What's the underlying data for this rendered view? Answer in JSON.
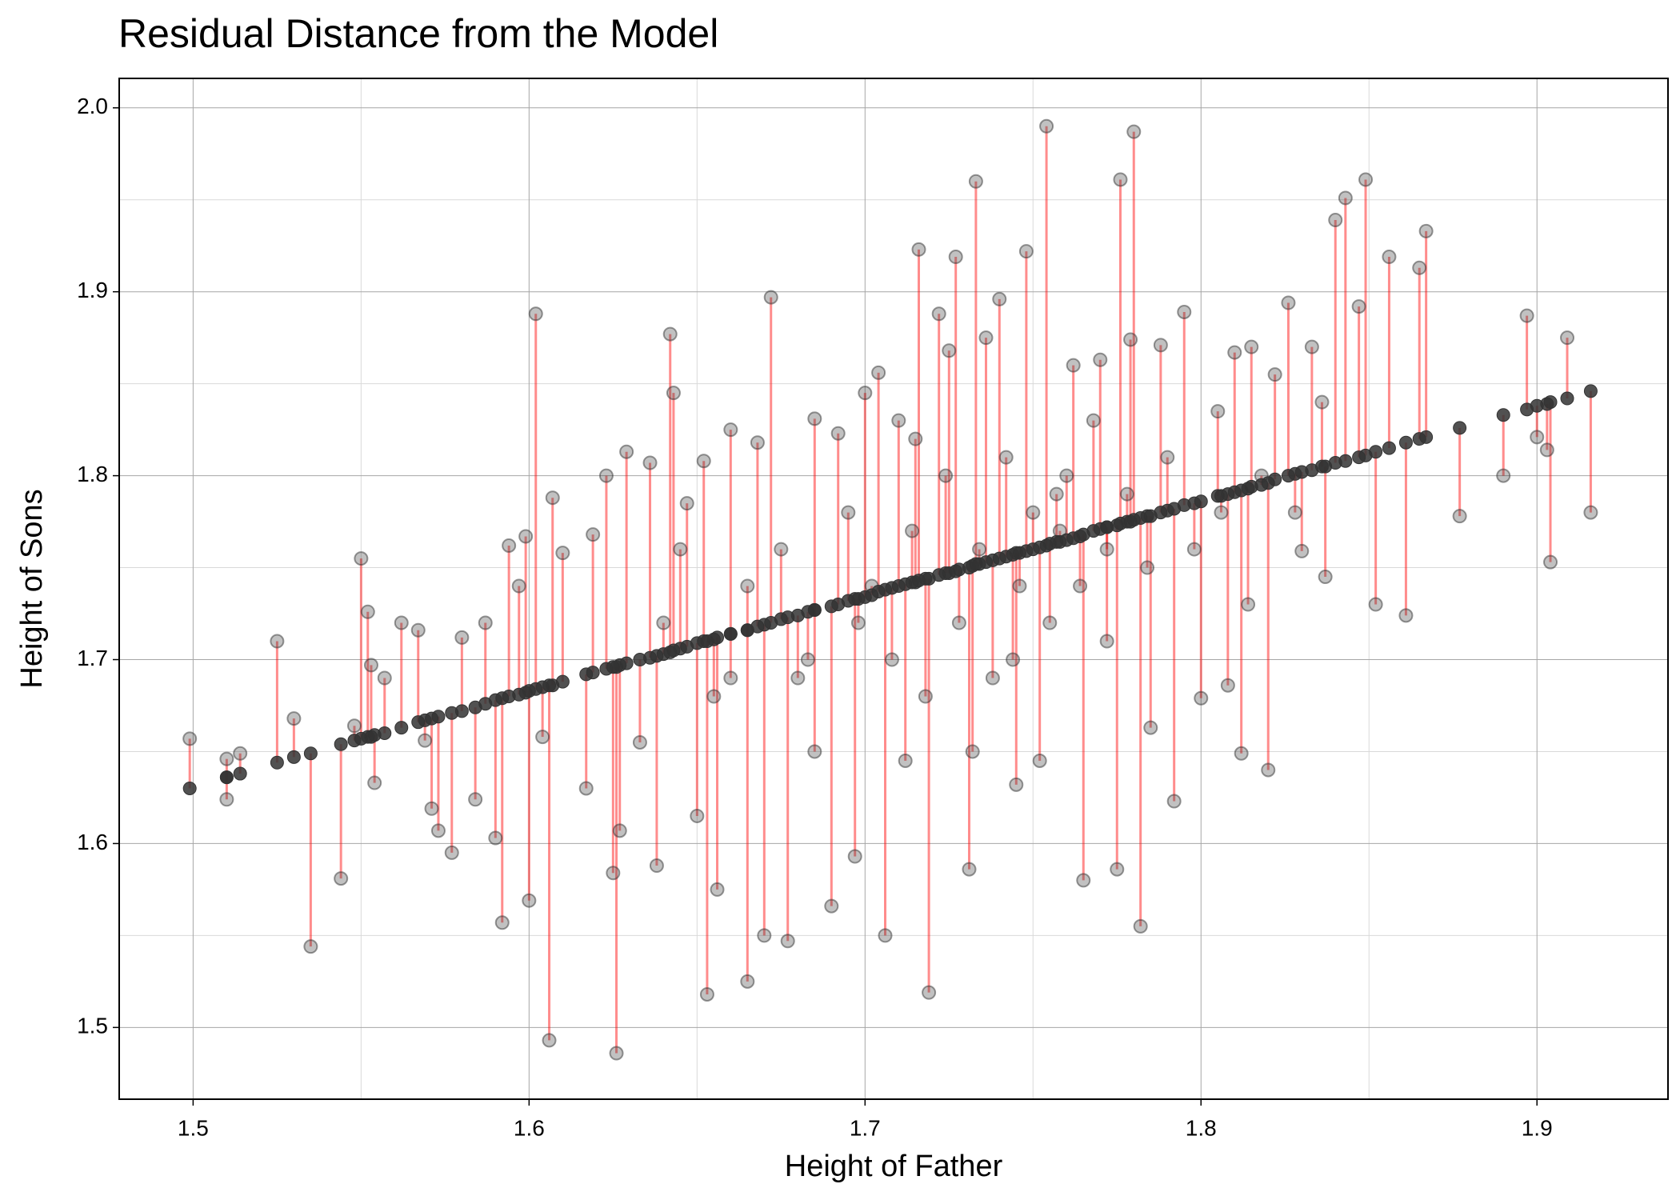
{
  "chart_data": {
    "type": "scatter",
    "title": "Residual Distance from the Model",
    "x_label": "Height of Father",
    "y_label": "Height of Sons",
    "xlim": [
      1.478,
      1.939
    ],
    "ylim": [
      1.461,
      2.016
    ],
    "xticks": [
      1.5,
      1.6,
      1.7,
      1.8,
      1.9
    ],
    "yticks": [
      1.5,
      1.6,
      1.7,
      1.8,
      1.9,
      {
        "value": 2,
        "label": "2.0"
      }
    ],
    "xminor": [
      1.55,
      1.65,
      1.75,
      1.85
    ],
    "yminor": [
      1.55,
      1.65,
      1.75,
      1.85,
      1.95
    ],
    "grid": true,
    "point_color": "#333333",
    "residual_color": "#ff0000",
    "x": [
      1.499,
      1.51,
      1.51,
      1.514,
      1.525,
      1.53,
      1.535,
      1.544,
      1.548,
      1.55,
      1.552,
      1.553,
      1.554,
      1.557,
      1.562,
      1.567,
      1.569,
      1.571,
      1.573,
      1.577,
      1.58,
      1.584,
      1.587,
      1.59,
      1.592,
      1.594,
      1.597,
      1.599,
      1.6,
      1.602,
      1.604,
      1.606,
      1.607,
      1.61,
      1.617,
      1.619,
      1.623,
      1.625,
      1.626,
      1.627,
      1.629,
      1.633,
      1.636,
      1.638,
      1.642,
      1.643,
      1.647,
      1.65,
      1.652,
      1.653,
      1.656,
      1.66,
      1.665,
      1.668,
      1.67,
      1.672,
      1.677,
      1.68,
      1.685,
      1.69,
      1.692,
      1.697,
      1.7,
      1.704,
      1.706,
      1.71,
      1.712,
      1.716,
      1.719,
      1.722,
      1.725,
      1.727,
      1.731,
      1.733,
      1.736,
      1.74,
      1.745,
      1.748,
      1.752,
      1.754,
      1.757,
      1.762,
      1.765,
      1.77,
      1.775,
      1.776,
      1.779,
      1.78,
      1.782,
      1.785,
      1.788,
      1.792,
      1.795,
      1.8,
      1.805,
      1.808,
      1.81,
      1.812,
      1.815,
      1.82,
      1.822,
      1.826,
      1.83,
      1.833,
      1.837,
      1.84,
      1.843,
      1.847,
      1.849,
      1.852,
      1.856,
      1.861,
      1.865,
      1.867,
      1.877,
      1.89,
      1.897,
      1.9,
      1.903,
      1.904,
      1.909,
      1.916,
      1.64,
      1.66,
      1.675,
      1.683,
      1.695,
      1.702,
      1.708,
      1.714,
      1.718,
      1.724,
      1.728,
      1.734,
      1.738,
      1.742,
      1.746,
      1.75,
      1.755,
      1.76,
      1.764,
      1.768,
      1.772,
      1.778,
      1.784,
      1.79,
      1.798,
      1.806,
      1.814,
      1.818,
      1.828,
      1.836,
      1.645,
      1.655,
      1.665,
      1.685,
      1.698,
      1.715,
      1.732,
      1.744,
      1.758,
      1.772
    ],
    "y": [
      1.657,
      1.646,
      1.624,
      1.649,
      1.71,
      1.668,
      1.544,
      1.581,
      1.664,
      1.755,
      1.726,
      1.697,
      1.633,
      1.69,
      1.72,
      1.716,
      1.656,
      1.619,
      1.607,
      1.595,
      1.712,
      1.624,
      1.72,
      1.603,
      1.557,
      1.762,
      1.74,
      1.767,
      1.569,
      1.888,
      1.658,
      1.493,
      1.788,
      1.758,
      1.63,
      1.768,
      1.8,
      1.584,
      1.486,
      1.607,
      1.813,
      1.655,
      1.807,
      1.588,
      1.877,
      1.845,
      1.785,
      1.615,
      1.808,
      1.518,
      1.575,
      1.825,
      1.525,
      1.818,
      1.55,
      1.897,
      1.547,
      1.69,
      1.831,
      1.566,
      1.823,
      1.593,
      1.845,
      1.856,
      1.55,
      1.83,
      1.645,
      1.923,
      1.519,
      1.888,
      1.868,
      1.919,
      1.586,
      1.96,
      1.875,
      1.896,
      1.632,
      1.922,
      1.645,
      1.99,
      1.79,
      1.86,
      1.58,
      1.863,
      1.586,
      1.961,
      1.874,
      1.987,
      1.555,
      1.663,
      1.871,
      1.623,
      1.889,
      1.679,
      1.835,
      1.686,
      1.867,
      1.649,
      1.87,
      1.64,
      1.855,
      1.894,
      1.759,
      1.87,
      1.745,
      1.939,
      1.951,
      1.892,
      1.961,
      1.73,
      1.919,
      1.724,
      1.913,
      1.933,
      1.778,
      1.8,
      1.887,
      1.821,
      1.814,
      1.753,
      1.875,
      1.78,
      1.72,
      1.69,
      1.76,
      1.7,
      1.78,
      1.74,
      1.7,
      1.77,
      1.68,
      1.8,
      1.72,
      1.76,
      1.69,
      1.81,
      1.74,
      1.78,
      1.72,
      1.8,
      1.74,
      1.83,
      1.71,
      1.79,
      1.75,
      1.81,
      1.76,
      1.78,
      1.73,
      1.8,
      1.78,
      1.84,
      1.76,
      1.68,
      1.74,
      1.65,
      1.72,
      1.82,
      1.65,
      1.7,
      1.77,
      1.76
    ],
    "fitted": [
      1.63,
      1.636,
      1.636,
      1.638,
      1.644,
      1.647,
      1.649,
      1.654,
      1.656,
      1.657,
      1.658,
      1.658,
      1.659,
      1.66,
      1.663,
      1.666,
      1.667,
      1.668,
      1.669,
      1.671,
      1.672,
      1.674,
      1.676,
      1.678,
      1.679,
      1.68,
      1.681,
      1.682,
      1.683,
      1.684,
      1.685,
      1.686,
      1.686,
      1.688,
      1.692,
      1.693,
      1.695,
      1.696,
      1.696,
      1.697,
      1.698,
      1.7,
      1.701,
      1.702,
      1.704,
      1.705,
      1.707,
      1.709,
      1.71,
      1.71,
      1.712,
      1.714,
      1.716,
      1.718,
      1.719,
      1.72,
      1.723,
      1.724,
      1.727,
      1.729,
      1.73,
      1.733,
      1.734,
      1.737,
      1.738,
      1.74,
      1.741,
      1.743,
      1.744,
      1.746,
      1.747,
      1.748,
      1.75,
      1.752,
      1.753,
      1.755,
      1.758,
      1.759,
      1.761,
      1.762,
      1.764,
      1.766,
      1.768,
      1.771,
      1.773,
      1.774,
      1.775,
      1.776,
      1.777,
      1.778,
      1.78,
      1.782,
      1.784,
      1.786,
      1.789,
      1.79,
      1.791,
      1.792,
      1.794,
      1.796,
      1.798,
      1.8,
      1.802,
      1.803,
      1.805,
      1.807,
      1.808,
      1.81,
      1.811,
      1.813,
      1.815,
      1.818,
      1.82,
      1.821,
      1.826,
      1.833,
      1.836,
      1.838,
      1.839,
      1.84,
      1.842,
      1.846,
      1.703,
      1.714,
      1.722,
      1.726,
      1.732,
      1.735,
      1.739,
      1.742,
      1.744,
      1.747,
      1.749,
      1.752,
      1.754,
      1.756,
      1.758,
      1.76,
      1.763,
      1.765,
      1.767,
      1.77,
      1.772,
      1.775,
      1.778,
      1.781,
      1.785,
      1.789,
      1.793,
      1.795,
      1.801,
      1.805,
      1.706,
      1.711,
      1.716,
      1.727,
      1.733,
      1.742,
      1.751,
      1.757,
      1.764,
      1.772
    ]
  }
}
